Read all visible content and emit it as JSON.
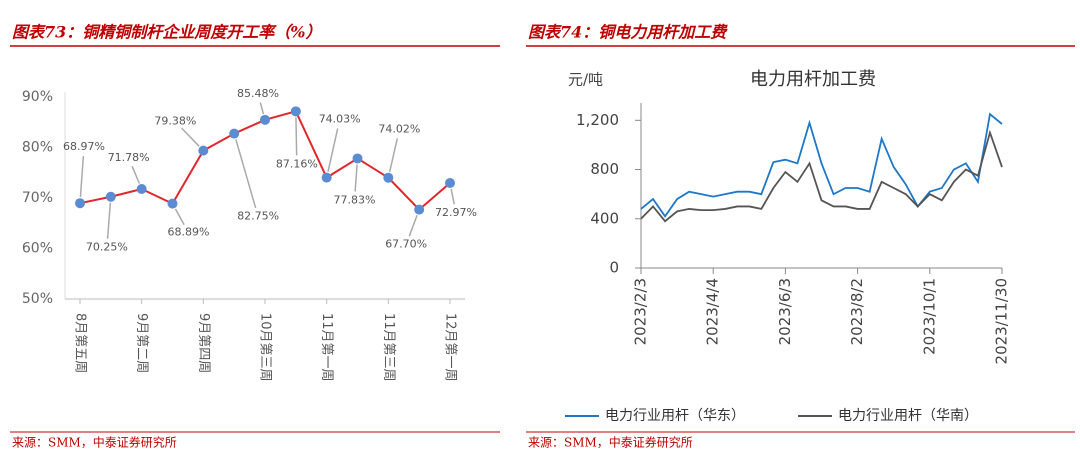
{
  "chart_data": [
    {
      "type": "line",
      "title": "图表73：铜精铜制杆企业周度开工率（%）",
      "source": "来源：SMM，中泰证券研究所",
      "categories": [
        "8月第五周",
        null,
        "9月第二周",
        null,
        "9月第四周",
        null,
        "10月第三周",
        null,
        "11月第一周",
        null,
        "11月第三周",
        null,
        "12月第一周"
      ],
      "series": [
        {
          "name": null,
          "color": "#e3262b",
          "marker_color": "#5b8bd0",
          "values": [
            68.97,
            70.25,
            71.78,
            68.89,
            79.38,
            82.75,
            85.48,
            87.16,
            74.03,
            77.83,
            74.02,
            67.7,
            72.97
          ],
          "value_labels": [
            "68.97%",
            "70.25%",
            "71.78%",
            "68.89%",
            "79.38%",
            "82.75%",
            "85.48%",
            "87.16%",
            "74.03%",
            "77.83%",
            "74.02%",
            "67.70%",
            "72.97%"
          ]
        }
      ],
      "ylim": [
        50,
        90
      ],
      "yticks": [
        {
          "value": 50,
          "label": "50%"
        },
        {
          "value": 60,
          "label": "60%"
        },
        {
          "value": 70,
          "label": "70%"
        },
        {
          "value": 80,
          "label": "80%"
        },
        {
          "value": 90,
          "label": "90%"
        }
      ]
    },
    {
      "type": "line",
      "title": "图表74：铜电力用杆加工费",
      "subtitle": "电力用杆加工费",
      "y_label": "元/吨",
      "source": "来源：SMM，中泰证券研究所",
      "x": [
        "2023/2/3",
        "2023/2/13",
        "2023/2/23",
        "2023/3/5",
        "2023/3/15",
        "2023/3/25",
        "2023/4/4",
        "2023/4/14",
        "2023/4/24",
        "2023/5/4",
        "2023/5/14",
        "2023/5/24",
        "2023/6/3",
        "2023/6/13",
        "2023/6/23",
        "2023/7/3",
        "2023/7/13",
        "2023/7/23",
        "2023/8/2",
        "2023/8/12",
        "2023/8/22",
        "2023/9/1",
        "2023/9/11",
        "2023/9/21",
        "2023/10/1",
        "2023/10/11",
        "2023/10/21",
        "2023/10/31",
        "2023/11/10",
        "2023/11/20",
        "2023/11/30"
      ],
      "xticks": [
        "2023/2/3",
        "2023/4/4",
        "2023/6/3",
        "2023/8/2",
        "2023/10/1",
        "2023/11/30"
      ],
      "series": [
        {
          "name": "电力行业用杆（华东）",
          "color": "#1f77c8",
          "values": [
            480,
            560,
            420,
            560,
            620,
            600,
            580,
            600,
            620,
            620,
            600,
            860,
            880,
            850,
            1180,
            850,
            600,
            650,
            650,
            620,
            1050,
            820,
            680,
            500,
            620,
            650,
            800,
            850,
            700,
            1250,
            1170
          ]
        },
        {
          "name": "电力行业用杆（华南）",
          "color": "#555555",
          "values": [
            400,
            500,
            380,
            460,
            480,
            470,
            470,
            480,
            500,
            500,
            480,
            650,
            780,
            700,
            850,
            550,
            500,
            500,
            480,
            480,
            700,
            650,
            600,
            500,
            600,
            550,
            700,
            800,
            750,
            1100,
            820
          ]
        }
      ],
      "ylim": [
        0,
        1300
      ],
      "yticks": [
        0,
        400,
        800,
        {
          "value": 1200,
          "label": "1,200"
        }
      ],
      "legend": "bottom"
    }
  ]
}
